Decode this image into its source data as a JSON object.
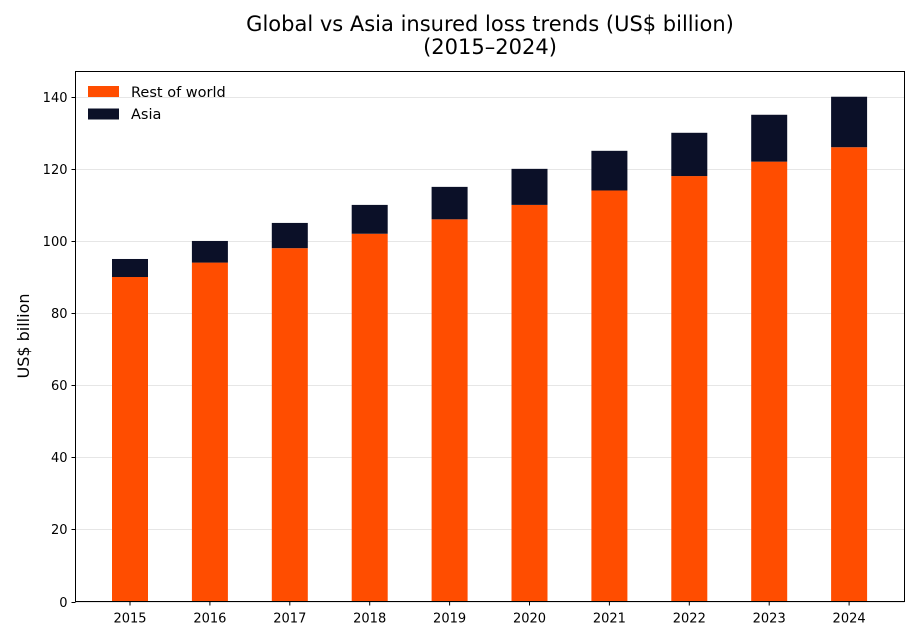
{
  "chart_data": {
    "type": "bar",
    "stacked": true,
    "title_line1": "Global vs Asia insured loss trends (US$ billion)",
    "title_line2": "(2015–2024)",
    "xlabel": "",
    "ylabel": "US$ billion",
    "categories": [
      "2015",
      "2016",
      "2017",
      "2018",
      "2019",
      "2020",
      "2021",
      "2022",
      "2023",
      "2024"
    ],
    "series": [
      {
        "name": "Rest of world",
        "color": "#ff4d00",
        "values": [
          90,
          94,
          98,
          102,
          106,
          110,
          114,
          118,
          122,
          126
        ]
      },
      {
        "name": "Asia",
        "color": "#0b1028",
        "values": [
          5,
          6,
          7,
          8,
          9,
          10,
          11,
          12,
          13,
          14
        ]
      }
    ],
    "ylim": [
      0,
      147
    ],
    "yticks": [
      0,
      20,
      40,
      60,
      80,
      100,
      120,
      140
    ],
    "grid": "horizontal",
    "legend_position": "top-left"
  }
}
